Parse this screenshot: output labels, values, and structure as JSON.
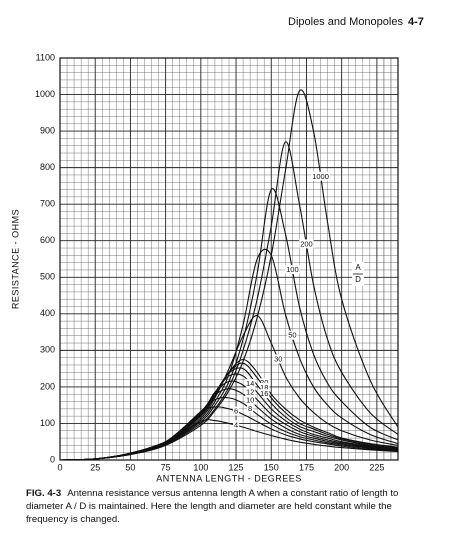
{
  "header": {
    "section": "Dipoles and Monopoles",
    "page": "4-7"
  },
  "chart_data": {
    "type": "line",
    "xlabel": "ANTENNA LENGTH - DEGREES",
    "ylabel": "RESISTANCE - OHMS",
    "legend_title": {
      "numerator": "A",
      "denominator": "D"
    },
    "xlim": [
      0,
      240
    ],
    "ylim": [
      0,
      1100
    ],
    "xticks": [
      0,
      25,
      50,
      75,
      100,
      125,
      150,
      175,
      200,
      225
    ],
    "yticks": [
      0,
      100,
      200,
      300,
      400,
      500,
      600,
      700,
      800,
      900,
      1000,
      1100
    ],
    "grid": true,
    "x": [
      0,
      25,
      50,
      75,
      100,
      110,
      120,
      130,
      140,
      150,
      160,
      170,
      180,
      190,
      200,
      220,
      240
    ],
    "series": [
      {
        "name": "1000",
        "color": "#111111",
        "values": [
          0,
          3,
          15,
          40,
          95,
          135,
          190,
          270,
          390,
          560,
          790,
          1010,
          900,
          650,
          440,
          220,
          90
        ]
      },
      {
        "name": "200",
        "color": "#111111",
        "values": [
          0,
          3,
          15,
          42,
          100,
          140,
          200,
          300,
          440,
          640,
          870,
          700,
          480,
          330,
          240,
          130,
          70
        ]
      },
      {
        "name": "100",
        "color": "#111111",
        "values": [
          0,
          3,
          16,
          43,
          105,
          150,
          215,
          330,
          510,
          740,
          620,
          420,
          290,
          210,
          160,
          90,
          55
        ]
      },
      {
        "name": "50",
        "color": "#111111",
        "values": [
          0,
          3,
          16,
          44,
          110,
          160,
          235,
          370,
          550,
          560,
          400,
          280,
          200,
          150,
          115,
          70,
          45
        ]
      },
      {
        "name": "30",
        "color": "#111111",
        "values": [
          0,
          3,
          17,
          45,
          115,
          170,
          250,
          340,
          395,
          320,
          230,
          170,
          130,
          100,
          80,
          55,
          40
        ]
      },
      {
        "name": "20",
        "color": "#111111",
        "values": [
          0,
          3,
          17,
          46,
          120,
          175,
          240,
          275,
          240,
          180,
          140,
          110,
          90,
          75,
          60,
          45,
          35
        ]
      },
      {
        "name": "18",
        "color": "#111111",
        "values": [
          0,
          3,
          17,
          46,
          122,
          180,
          240,
          265,
          225,
          170,
          130,
          100,
          85,
          70,
          58,
          43,
          33
        ]
      },
      {
        "name": "16",
        "color": "#111111",
        "values": [
          0,
          3,
          17,
          47,
          125,
          183,
          238,
          250,
          205,
          155,
          118,
          92,
          78,
          65,
          55,
          40,
          31
        ]
      },
      {
        "name": "14",
        "color": "#111111",
        "values": [
          0,
          3,
          18,
          47,
          128,
          185,
          230,
          230,
          185,
          140,
          108,
          85,
          70,
          60,
          50,
          38,
          30
        ]
      },
      {
        "name": "12",
        "color": "#111111",
        "values": [
          0,
          3,
          18,
          48,
          130,
          185,
          215,
          205,
          165,
          125,
          98,
          78,
          65,
          55,
          47,
          36,
          28
        ]
      },
      {
        "name": "10",
        "color": "#111111",
        "values": [
          0,
          3,
          18,
          48,
          132,
          178,
          195,
          180,
          145,
          112,
          88,
          70,
          60,
          51,
          44,
          34,
          27
        ]
      },
      {
        "name": "8",
        "color": "#111111",
        "values": [
          0,
          3,
          18,
          49,
          133,
          165,
          170,
          155,
          125,
          98,
          78,
          64,
          55,
          47,
          41,
          32,
          26
        ]
      },
      {
        "name": "6",
        "color": "#111111",
        "values": [
          0,
          3,
          19,
          50,
          130,
          145,
          140,
          125,
          105,
          85,
          69,
          58,
          50,
          44,
          38,
          30,
          25
        ]
      },
      {
        "name": "4",
        "color": "#111111",
        "values": [
          0,
          3,
          19,
          50,
          105,
          108,
          100,
          90,
          78,
          67,
          57,
          49,
          43,
          38,
          34,
          28,
          23
        ]
      }
    ]
  },
  "caption": {
    "label": "FIG. 4-3",
    "text": "Antenna resistance versus antenna length A when a constant ratio of length to diameter A / D is maintained. Here the length and diameter are held constant while the frequency is changed."
  }
}
